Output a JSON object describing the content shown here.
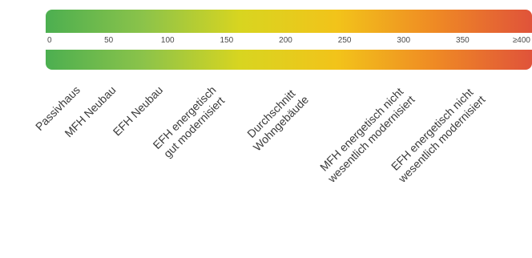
{
  "chart_data": {
    "type": "scale",
    "xlim": [
      0,
      400
    ],
    "ticks": [
      {
        "value": 0,
        "label": "0"
      },
      {
        "value": 50,
        "label": "50"
      },
      {
        "value": 100,
        "label": "100"
      },
      {
        "value": 150,
        "label": "150"
      },
      {
        "value": 200,
        "label": "200"
      },
      {
        "value": 250,
        "label": "250"
      },
      {
        "value": 300,
        "label": "300"
      },
      {
        "value": 350,
        "label": "350"
      },
      {
        "value": 400,
        "label": "≥400"
      }
    ],
    "gradient_colors": [
      "#4caf50",
      "#8bc34a",
      "#d8d520",
      "#f2c31a",
      "#ef8a24",
      "#e0533a"
    ],
    "categories": [
      {
        "value": 15,
        "lines": [
          "Passivhaus"
        ]
      },
      {
        "value": 45,
        "lines": [
          "MFH Neubau"
        ]
      },
      {
        "value": 85,
        "lines": [
          "EFH Neubau"
        ]
      },
      {
        "value": 130,
        "lines": [
          "EFH energetisch",
          "gut modernisiert"
        ]
      },
      {
        "value": 200,
        "lines": [
          "Durchschnitt",
          "Wohngebäude"
        ]
      },
      {
        "value": 290,
        "lines": [
          "MFH energetisch nicht",
          "wesentlich modernisiert"
        ]
      },
      {
        "value": 350,
        "lines": [
          "EFH energetisch nicht",
          "wesentlich modernisiert"
        ]
      }
    ]
  }
}
